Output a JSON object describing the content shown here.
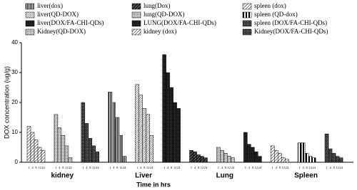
{
  "chart_data": {
    "type": "grouped-bar",
    "y_label": "DOX concentration (ug/g)",
    "x_label": "Time in hrs",
    "groups": [
      "kidney",
      "Liver",
      "Lung",
      "Spleen"
    ],
    "time_labels": [
      "1",
      "4",
      "8",
      "12",
      "24"
    ],
    "ylim": [
      0,
      40
    ],
    "yticks": [
      0,
      10,
      20,
      30,
      40
    ],
    "series": [
      {
        "name": "kidney (dox)",
        "style": "hatch",
        "values": [
          12,
          10,
          7.5,
          5,
          4
        ]
      },
      {
        "name": "Kidney(QD-DOX)",
        "style": "dots",
        "values": [
          16,
          11.5,
          9,
          5.5,
          1.5
        ]
      },
      {
        "name": "Kidney(DOX/FA-CHI-QDs)",
        "style": "checker",
        "values": [
          20,
          13,
          8,
          5.5,
          3.5
        ]
      },
      {
        "name": "liver(dox)",
        "style": "vertical",
        "values": [
          23.5,
          20,
          15,
          9,
          2
        ]
      },
      {
        "name": "liver(QD-DOX)",
        "style": "hatch-dense",
        "values": [
          26,
          22.5,
          18,
          16,
          9
        ]
      },
      {
        "name": "liver(DOX/FA-CHI-QDs)",
        "style": "dark",
        "values": [
          36,
          30,
          25,
          20,
          18
        ]
      },
      {
        "name": "lung(Dox)",
        "style": "dark-stripe",
        "values": [
          4,
          3.5,
          2.5,
          2,
          1.5
        ]
      },
      {
        "name": "lung(QD-DOX)",
        "style": "dots",
        "values": [
          5,
          4,
          3,
          2,
          1.5
        ]
      },
      {
        "name": "LUNG(DOX/FA-CHI-QDs)",
        "style": "dark",
        "values": [
          10,
          6,
          5,
          3.5,
          2
        ]
      },
      {
        "name": "spleen (dox)",
        "style": "hatch",
        "values": [
          5.5,
          4,
          3,
          1.5,
          1
        ]
      },
      {
        "name": "spleen (QD-dox)",
        "style": "bars",
        "values": [
          6.5,
          6.5,
          3,
          2,
          1.5
        ]
      },
      {
        "name": "spleen (DOX/FA-CHI-QDs)",
        "style": "checker",
        "values": [
          9.5,
          4.5,
          3,
          2,
          1.5
        ]
      }
    ]
  }
}
